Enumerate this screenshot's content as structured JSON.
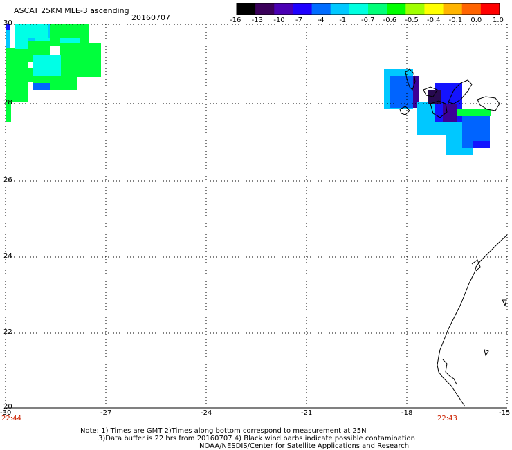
{
  "header": {
    "title": "ASCAT 25KM MLE-3 ascending",
    "date": "20160707"
  },
  "colorbar": {
    "labels": [
      "-16",
      "-13",
      "-10",
      "-7",
      "-4",
      "-1",
      "-0.7",
      "-0.6",
      "-0.5",
      "-0.4",
      "-0.1",
      "0.0",
      "1.0"
    ],
    "colors": [
      "#000000",
      "#3a005a",
      "#4a00b4",
      "#1e00ff",
      "#006cff",
      "#00c8ff",
      "#00ffe0",
      "#00ff78",
      "#00ff00",
      "#a0ff00",
      "#ffff00",
      "#ffb400",
      "#ff6400",
      "#ff0000"
    ]
  },
  "axes": {
    "lon_labels": [
      "-30",
      "-27",
      "-24",
      "-21",
      "-18",
      "-15"
    ],
    "lat_labels": [
      "30",
      "28",
      "26",
      "24",
      "22",
      "20"
    ],
    "start_time": "22:44",
    "end_time": "22:43"
  },
  "notes": {
    "line1": "Note: 1) Times are GMT 2)Times along bottom correspond to measurement at 25N",
    "line2": "3)Data buffer is 22 hrs from 20160707 4) Black wind barbs indicate possible contamination",
    "line3": "NOAA/NESDIS/Center for Satellite Applications and Research"
  },
  "legend_colors": {
    "green": "#00ff3c",
    "cyan": "#00ffe6",
    "sky": "#00c8ff",
    "blue": "#0064ff",
    "deepblue": "#1414ff",
    "purple": "#3c0096",
    "dark": "#280a50"
  }
}
